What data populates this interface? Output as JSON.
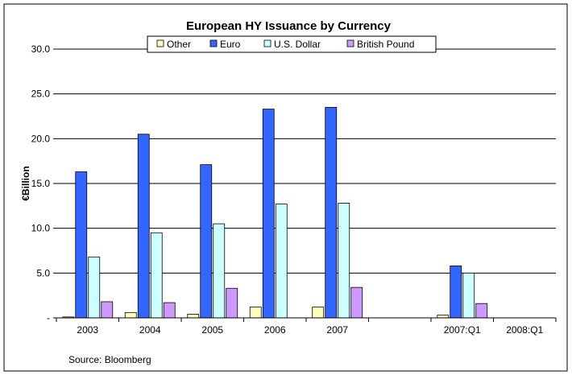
{
  "chart_data": {
    "type": "bar",
    "title": "European HY Issuance by Currency",
    "ylabel": "€Billion",
    "xlabel": "",
    "ylim": [
      0,
      30
    ],
    "yticks": [
      {
        "value": 0,
        "label": "-"
      },
      {
        "value": 5,
        "label": "5.0"
      },
      {
        "value": 10,
        "label": "10.0"
      },
      {
        "value": 15,
        "label": "15.0"
      },
      {
        "value": 20,
        "label": "20.0"
      },
      {
        "value": 25,
        "label": "25.0"
      },
      {
        "value": 30,
        "label": "30.0"
      }
    ],
    "categories": [
      "2003",
      "2004",
      "2005",
      "2006",
      "2007",
      "",
      "2007:Q1",
      "2008:Q1"
    ],
    "series": [
      {
        "name": "Other",
        "color": "#FFFFC0",
        "values": [
          0.1,
          0.6,
          0.4,
          1.2,
          1.2,
          null,
          0.3,
          null
        ]
      },
      {
        "name": "Euro",
        "color": "#3366FF",
        "values": [
          16.3,
          20.5,
          17.1,
          23.3,
          23.5,
          null,
          5.8,
          null
        ]
      },
      {
        "name": "U.S. Dollar",
        "color": "#CCFFFF",
        "values": [
          6.8,
          9.5,
          10.5,
          12.7,
          12.8,
          null,
          5.0,
          null
        ]
      },
      {
        "name": "British Pound",
        "color": "#CC99FF",
        "values": [
          1.8,
          1.7,
          3.3,
          null,
          3.4,
          null,
          1.6,
          null
        ]
      }
    ],
    "grid": true,
    "legend_position": "top"
  },
  "source_note": "Source: Bloomberg"
}
